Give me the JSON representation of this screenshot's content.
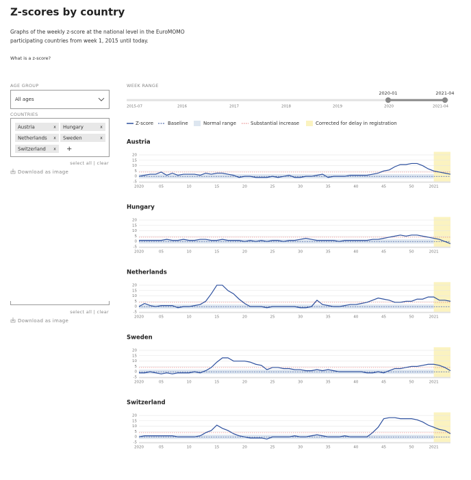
{
  "header": {
    "title": "Z-scores by country",
    "subtitle": [
      "Graphs of the weekly z-score at the national level in the EuroMOMO",
      "participating countries from week 1, 2015 until today."
    ],
    "link": "What is a z-score?"
  },
  "sidebar": {
    "age_group": {
      "label": "AGE GROUP",
      "value": "All ages"
    },
    "countries": {
      "label": "COUNTRIES",
      "chips": [
        "Austria",
        "Hungary",
        "Netherlands",
        "Sweden",
        "Switzerland"
      ],
      "remove": "x",
      "add": "+",
      "actions": "select all | clear",
      "download": "Download as image"
    },
    "panel2": {
      "actions": "select all | clear",
      "download": "Download as image"
    }
  },
  "week_range": {
    "label": "WEEK RANGE",
    "ticks": [
      "2015-07",
      "2016",
      "2017",
      "2018",
      "2019",
      "2020",
      "2021-04"
    ],
    "start": "2020-01",
    "end": "2021-04"
  },
  "legend": [
    "Z-score",
    "Baseline",
    "Normal range",
    "Substantial increase",
    "Corrected for delay in registration"
  ],
  "chart_data": [
    {
      "type": "line",
      "title": "Austria",
      "categories": [
        "2020",
        null,
        null,
        null,
        "05",
        null,
        null,
        null,
        null,
        "10",
        null,
        null,
        null,
        null,
        "15",
        null,
        null,
        null,
        null,
        "20",
        null,
        null,
        null,
        null,
        "25",
        null,
        null,
        null,
        null,
        "30",
        null,
        null,
        null,
        null,
        "35",
        null,
        null,
        null,
        null,
        "40",
        null,
        null,
        null,
        null,
        "45",
        null,
        null,
        null,
        null,
        "50",
        null,
        null,
        null,
        "2021",
        null,
        null,
        null
      ],
      "series": [
        {
          "color": "#2c4f9e",
          "values": [
            0,
            1,
            2,
            2,
            4,
            1,
            3,
            1,
            2,
            2,
            2,
            1,
            3,
            2,
            3,
            3,
            2,
            1,
            -1,
            0,
            0,
            -1,
            -1,
            -1,
            0,
            -1,
            0,
            1,
            -1,
            -1,
            0,
            0,
            1,
            2,
            -1,
            0,
            0,
            0,
            1,
            1,
            1,
            1,
            2,
            3,
            5,
            6,
            9,
            11,
            11,
            12,
            12,
            10,
            7,
            5,
            4,
            3,
            2
          ]
        }
      ],
      "ylim": [
        -5,
        21
      ],
      "yticks": [
        -5,
        0,
        5,
        10,
        15,
        20
      ],
      "baseline": 0,
      "normal_range": [
        -2,
        2
      ],
      "substantial_increase": 4,
      "corrected_from": 53,
      "grid": true
    },
    {
      "type": "line",
      "title": "Hungary",
      "categories": [
        "2020",
        null,
        null,
        null,
        "05",
        null,
        null,
        null,
        null,
        "10",
        null,
        null,
        null,
        null,
        "15",
        null,
        null,
        null,
        null,
        "20",
        null,
        null,
        null,
        null,
        "25",
        null,
        null,
        null,
        null,
        "30",
        null,
        null,
        null,
        null,
        "35",
        null,
        null,
        null,
        null,
        "40",
        null,
        null,
        null,
        null,
        "45",
        null,
        null,
        null,
        null,
        "50",
        null,
        null,
        null,
        "2021",
        null,
        null,
        null
      ],
      "series": [
        {
          "color": "#2c4f9e",
          "values": [
            1,
            1,
            1,
            1,
            1,
            2,
            1,
            1,
            2,
            1,
            1,
            2,
            2,
            1,
            1,
            2,
            1,
            1,
            1,
            0,
            1,
            0,
            1,
            0,
            1,
            1,
            0,
            1,
            1,
            2,
            3,
            2,
            1,
            1,
            1,
            1,
            0,
            1,
            1,
            1,
            1,
            1,
            2,
            2,
            3,
            4,
            5,
            6,
            5,
            6,
            6,
            5,
            4,
            3,
            2,
            0,
            -2
          ]
        }
      ],
      "ylim": [
        -5,
        21
      ],
      "yticks": [
        -5,
        0,
        5,
        10,
        15,
        20
      ],
      "baseline": 0,
      "normal_range": [
        -2,
        2
      ],
      "substantial_increase": 4,
      "corrected_from": 53,
      "grid": true
    },
    {
      "type": "line",
      "title": "Netherlands",
      "categories": [
        "2020",
        null,
        null,
        null,
        "05",
        null,
        null,
        null,
        null,
        "10",
        null,
        null,
        null,
        null,
        "15",
        null,
        null,
        null,
        null,
        "20",
        null,
        null,
        null,
        null,
        "25",
        null,
        null,
        null,
        null,
        "30",
        null,
        null,
        null,
        null,
        "35",
        null,
        null,
        null,
        null,
        "40",
        null,
        null,
        null,
        null,
        "45",
        null,
        null,
        null,
        null,
        "50",
        null,
        null,
        null,
        "2021",
        null,
        null,
        null
      ],
      "series": [
        {
          "color": "#2c4f9e",
          "values": [
            0,
            3,
            1,
            0,
            1,
            1,
            1,
            -1,
            0,
            0,
            1,
            2,
            5,
            12,
            20,
            20,
            15,
            12,
            7,
            3,
            0,
            0,
            0,
            -1,
            0,
            0,
            0,
            0,
            0,
            -1,
            -1,
            0,
            6,
            2,
            1,
            0,
            0,
            1,
            2,
            2,
            3,
            4,
            6,
            8,
            7,
            6,
            4,
            4,
            5,
            5,
            7,
            7,
            9,
            9,
            6,
            6,
            5
          ]
        }
      ],
      "ylim": [
        -5,
        21
      ],
      "yticks": [
        -5,
        0,
        5,
        10,
        15,
        20
      ],
      "baseline": 0,
      "normal_range": [
        -2,
        2
      ],
      "substantial_increase": 4,
      "corrected_from": 53,
      "grid": true
    },
    {
      "type": "line",
      "title": "Sweden",
      "categories": [
        "2020",
        null,
        null,
        null,
        "05",
        null,
        null,
        null,
        null,
        "10",
        null,
        null,
        null,
        null,
        "15",
        null,
        null,
        null,
        null,
        "20",
        null,
        null,
        null,
        null,
        "25",
        null,
        null,
        null,
        null,
        "30",
        null,
        null,
        null,
        null,
        "35",
        null,
        null,
        null,
        null,
        "40",
        null,
        null,
        null,
        null,
        "45",
        null,
        null,
        null,
        null,
        "50",
        null,
        null,
        null,
        "2021",
        null,
        null,
        null
      ],
      "series": [
        {
          "color": "#2c4f9e",
          "values": [
            -1,
            -1,
            0,
            -1,
            -2,
            -1,
            -2,
            -1,
            -1,
            -1,
            0,
            -1,
            1,
            4,
            9,
            13,
            13,
            10,
            10,
            10,
            9,
            7,
            6,
            2,
            4,
            4,
            3,
            3,
            2,
            2,
            1,
            1,
            2,
            1,
            2,
            1,
            0,
            0,
            0,
            0,
            0,
            -1,
            -1,
            0,
            -1,
            1,
            3,
            3,
            4,
            5,
            5,
            6,
            7,
            7,
            6,
            4,
            1
          ]
        }
      ],
      "ylim": [
        -5,
        21
      ],
      "yticks": [
        -5,
        0,
        5,
        10,
        15,
        20
      ],
      "baseline": 0,
      "normal_range": [
        -2,
        2
      ],
      "substantial_increase": 4,
      "corrected_from": 53,
      "grid": true
    },
    {
      "type": "line",
      "title": "Switzerland",
      "categories": [
        "2020",
        null,
        null,
        null,
        "05",
        null,
        null,
        null,
        null,
        "10",
        null,
        null,
        null,
        null,
        "15",
        null,
        null,
        null,
        null,
        "20",
        null,
        null,
        null,
        null,
        "25",
        null,
        null,
        null,
        null,
        "30",
        null,
        null,
        null,
        null,
        "35",
        null,
        null,
        null,
        null,
        "40",
        null,
        null,
        null,
        null,
        "45",
        null,
        null,
        null,
        null,
        "50",
        null,
        null,
        null,
        "2021",
        null,
        null,
        null
      ],
      "series": [
        {
          "color": "#2c4f9e",
          "values": [
            0,
            1,
            1,
            1,
            1,
            1,
            1,
            0,
            0,
            0,
            0,
            1,
            4,
            6,
            11,
            8,
            6,
            3,
            1,
            0,
            -1,
            -1,
            -1,
            -2,
            0,
            0,
            0,
            0,
            1,
            0,
            0,
            1,
            2,
            1,
            0,
            0,
            0,
            1,
            0,
            0,
            0,
            0,
            4,
            9,
            17,
            18,
            18,
            17,
            17,
            17,
            16,
            14,
            11,
            9,
            7,
            6,
            3
          ]
        }
      ],
      "ylim": [
        -5,
        21
      ],
      "yticks": [
        -5,
        0,
        5,
        10,
        15,
        20
      ],
      "baseline": 0,
      "normal_range": [
        -2,
        2
      ],
      "substantial_increase": 4,
      "corrected_from": 53,
      "grid": true
    }
  ]
}
